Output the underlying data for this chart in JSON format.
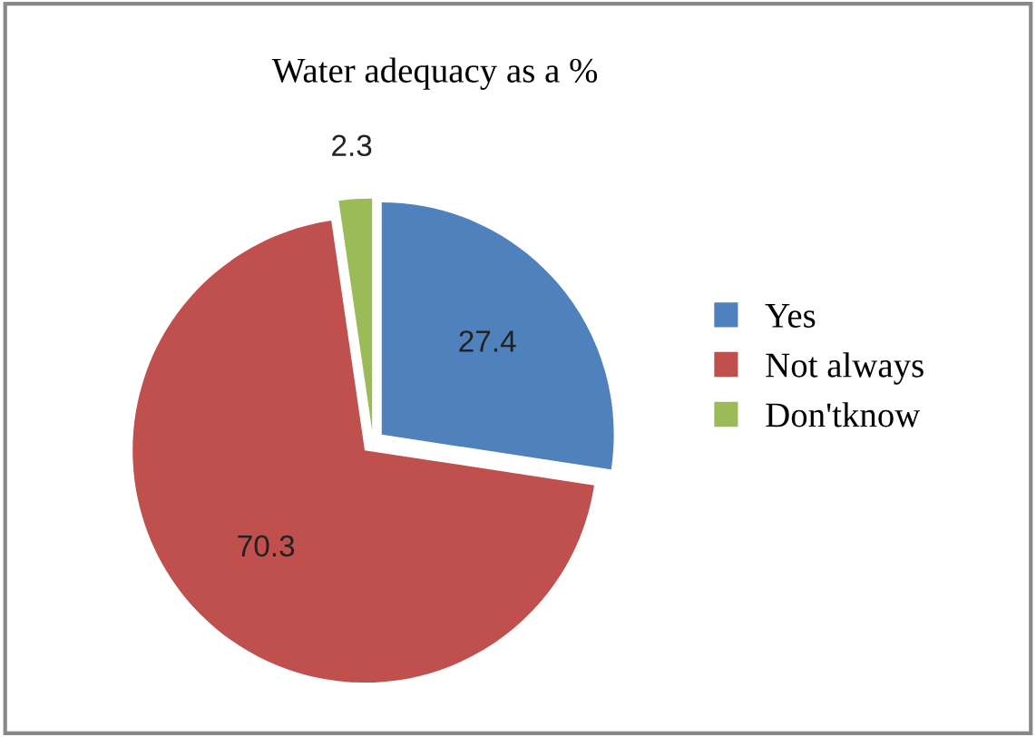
{
  "chart_data": {
    "type": "pie",
    "title": "Water adequacy as a %",
    "categories": [
      "Yes",
      "Not always",
      "Don'tknow"
    ],
    "values": [
      27.4,
      70.3,
      2.3
    ],
    "colors": [
      "#4f81bd",
      "#c0504d",
      "#9bbb59"
    ],
    "data_labels": true,
    "legend": "right"
  }
}
